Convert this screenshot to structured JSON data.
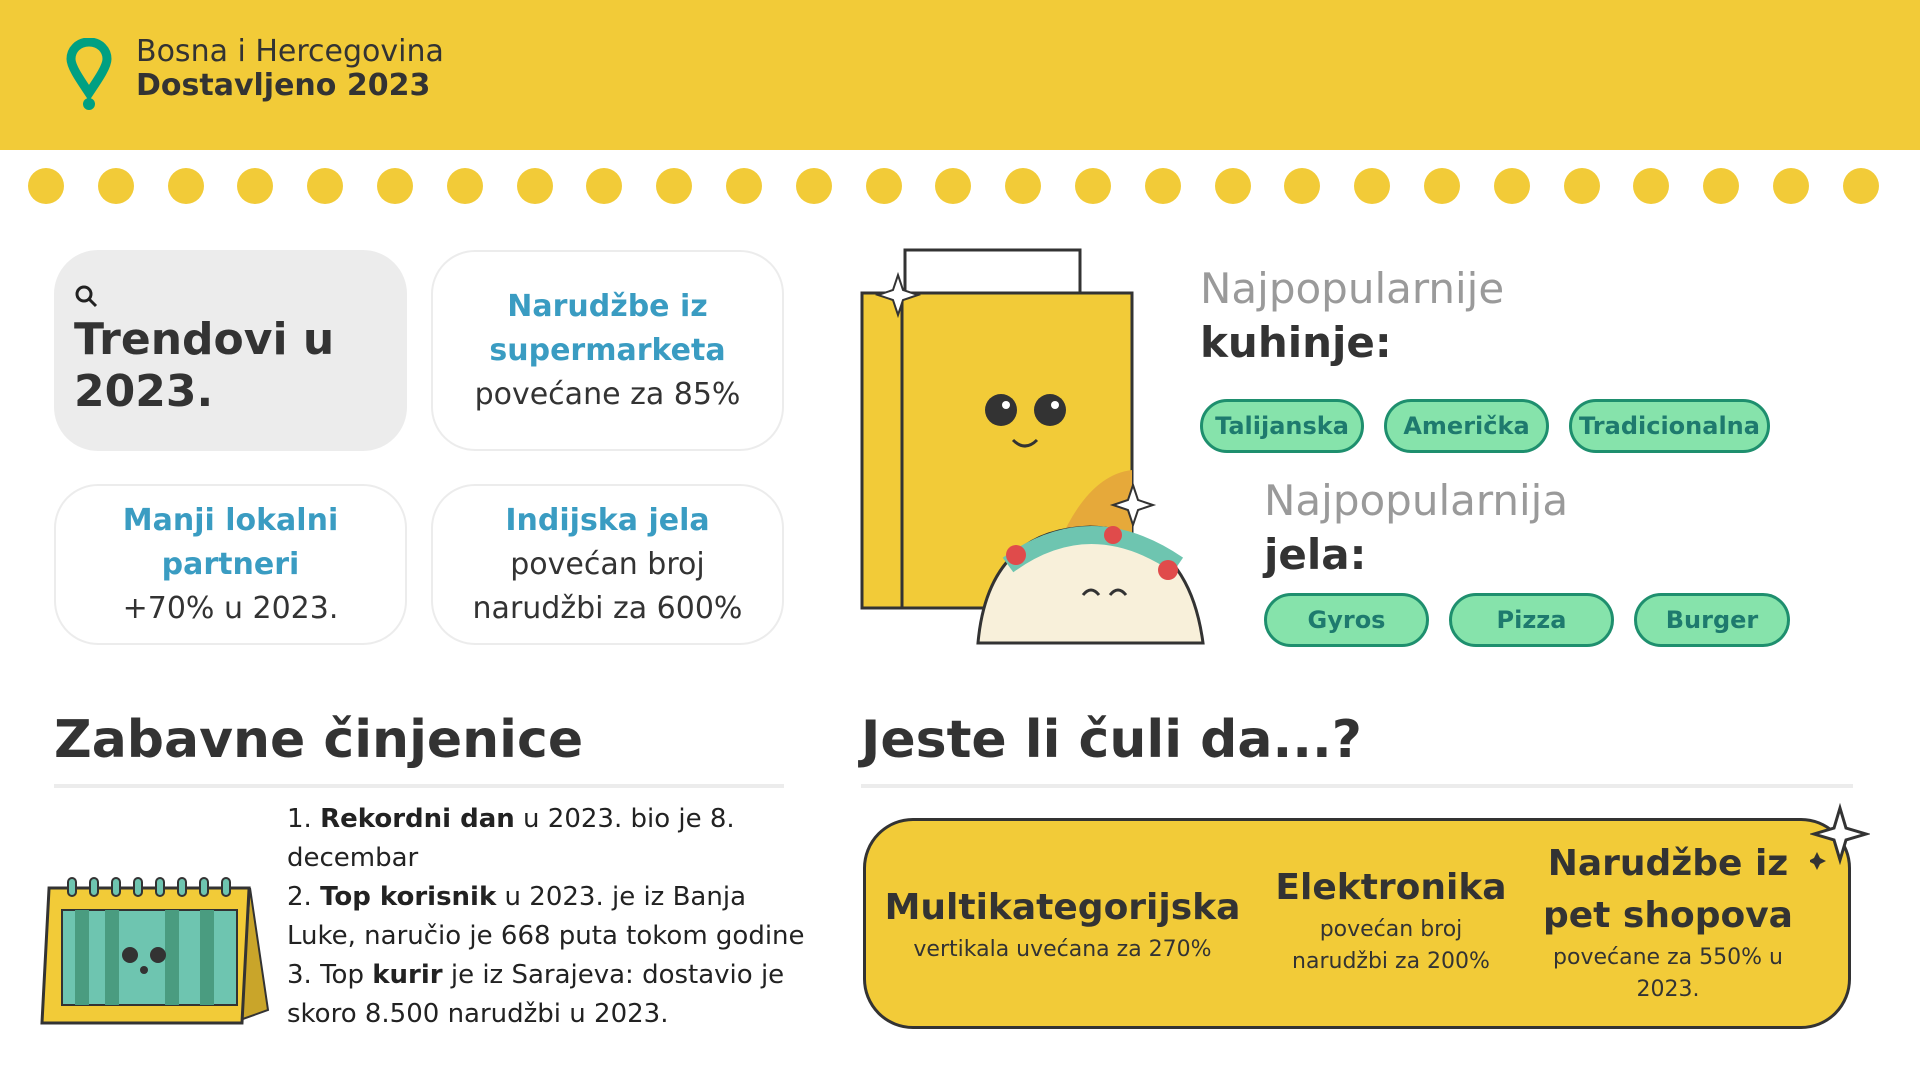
{
  "header": {
    "country": "Bosna i Hercegovina",
    "title": "Dostavljeno 2023",
    "brand_color": "#F2CB38",
    "pin_color": "#00A082"
  },
  "trends": {
    "icon": "search-icon",
    "title": "Trendovi u 2023.",
    "cards": [
      {
        "title": "Narudžbe iz supermarketa",
        "subtitle": "povećane za 85%"
      },
      {
        "title": "Manji lokalni partneri",
        "subtitle": "+70% u 2023."
      },
      {
        "title": "Indijska jela",
        "subtitle": "povećan broj narudžbi za 600%"
      }
    ]
  },
  "popular": {
    "cuisines_label_light": "Najpopularnije",
    "cuisines_label_bold": "kuhinje:",
    "cuisines": [
      "Talijanska",
      "Američka",
      "Tradicionalna"
    ],
    "dishes_label_light": "Najpopularnija",
    "dishes_label_bold": "jela:",
    "dishes": [
      "Gyros",
      "Pizza",
      "Burger"
    ]
  },
  "fun_facts": {
    "title": "Zabavne činjenice",
    "items": [
      {
        "num": "1.",
        "bold": "Rekordni dan",
        "rest": " u 2023. bio je 8. decembar"
      },
      {
        "num": "2.",
        "bold": "Top korisnik",
        "rest": " u 2023. je iz Banja Luke, naručio je 668 puta tokom godine"
      },
      {
        "num": "3. Top",
        "bold": "kurir",
        "rest": " je iz Sarajeva: dostavio je skoro 8.500 narudžbi u 2023."
      }
    ]
  },
  "did_you_know": {
    "title": "Jeste li čuli da...?",
    "columns": [
      {
        "title": "Multikategorijska",
        "subtitle": "vertikala uvećana za 270%"
      },
      {
        "title": "Elektronika",
        "subtitle": "povećan broj narudžbi za 200%"
      },
      {
        "title": "Narudžbe iz pet shopova",
        "subtitle": "povećane za 550% u 2023."
      }
    ]
  }
}
